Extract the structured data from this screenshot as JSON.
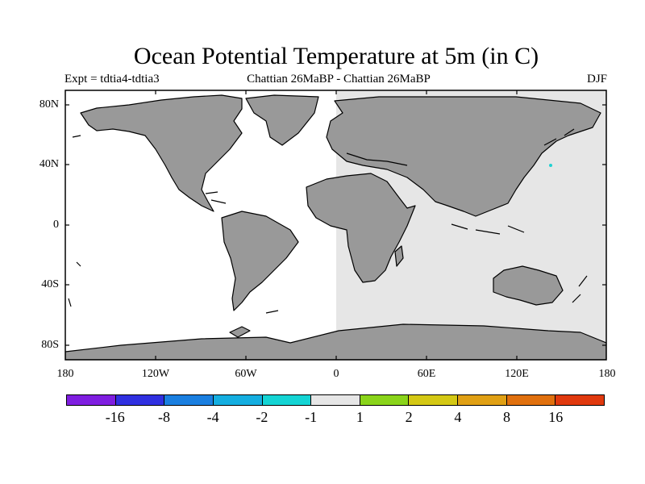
{
  "title": "Ocean Potential Temperature at 5m (in C)",
  "subtitle_left": "Expt = tdtia4-tdtia3",
  "subtitle_center": "Chattian  26MaBP - Chattian  26MaBP",
  "subtitle_right": "DJF",
  "colors": {
    "land": "#999999",
    "ocean_left": "#ffffff",
    "ocean_right": "#e6e6e6",
    "anomaly_spot": "#1fd1d1"
  },
  "map_extent": {
    "lon_range": [
      -180,
      180
    ],
    "lat_range": [
      -90,
      90
    ]
  },
  "y_ticks": [
    "80N",
    "40N",
    "0",
    "40S",
    "80S"
  ],
  "x_ticks": [
    "180",
    "120W",
    "60W",
    "0",
    "60E",
    "120E",
    "180"
  ],
  "colorbar": {
    "colors": [
      "#7f1ee0",
      "#3030e0",
      "#1a7fe0",
      "#14aee0",
      "#14d4d4",
      "#e6e6e6",
      "#8ad41a",
      "#d4c814",
      "#e0a014",
      "#e0700e",
      "#e0390e"
    ],
    "labels": [
      "-16",
      "-8",
      "-4",
      "-2",
      "-1",
      "1",
      "2",
      "4",
      "8",
      "16"
    ]
  }
}
